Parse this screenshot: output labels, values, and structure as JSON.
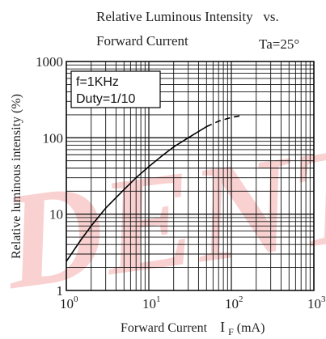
{
  "chart_data": {
    "type": "line",
    "title_line1": "Relative Luminous Intensity   vs.",
    "title_line2": "Forward Current",
    "condition": "Ta=25°",
    "annotation_line1": "f=1KHz",
    "annotation_line2": "Duty=1/10",
    "xlabel": "Forward Current",
    "xlabel_symbol": "I",
    "xlabel_subscript": "F",
    "xlabel_unit": "(mA)",
    "ylabel": "Relative luminous intensity (%)",
    "x_scale": "log",
    "y_scale": "log",
    "xlim": [
      1,
      1000
    ],
    "ylim": [
      1,
      1000
    ],
    "x_ticks": [
      {
        "base": "10",
        "exp": "0"
      },
      {
        "base": "10",
        "exp": "1"
      },
      {
        "base": "10",
        "exp": "2"
      },
      {
        "base": "10",
        "exp": "3"
      }
    ],
    "y_ticks": [
      "1",
      "10",
      "100",
      "1000"
    ],
    "grid": true,
    "series": [
      {
        "style": "solid",
        "x": [
          1,
          1.5,
          2,
          3,
          5,
          7,
          10,
          15,
          20,
          30,
          50
        ],
        "y": [
          2.4,
          4.6,
          7,
          12,
          21,
          30,
          42,
          60,
          76,
          100,
          140
        ]
      },
      {
        "style": "dashed",
        "x": [
          50,
          70,
          100,
          130
        ],
        "y": [
          140,
          165,
          185,
          195
        ]
      }
    ],
    "watermark": "DENTI"
  }
}
